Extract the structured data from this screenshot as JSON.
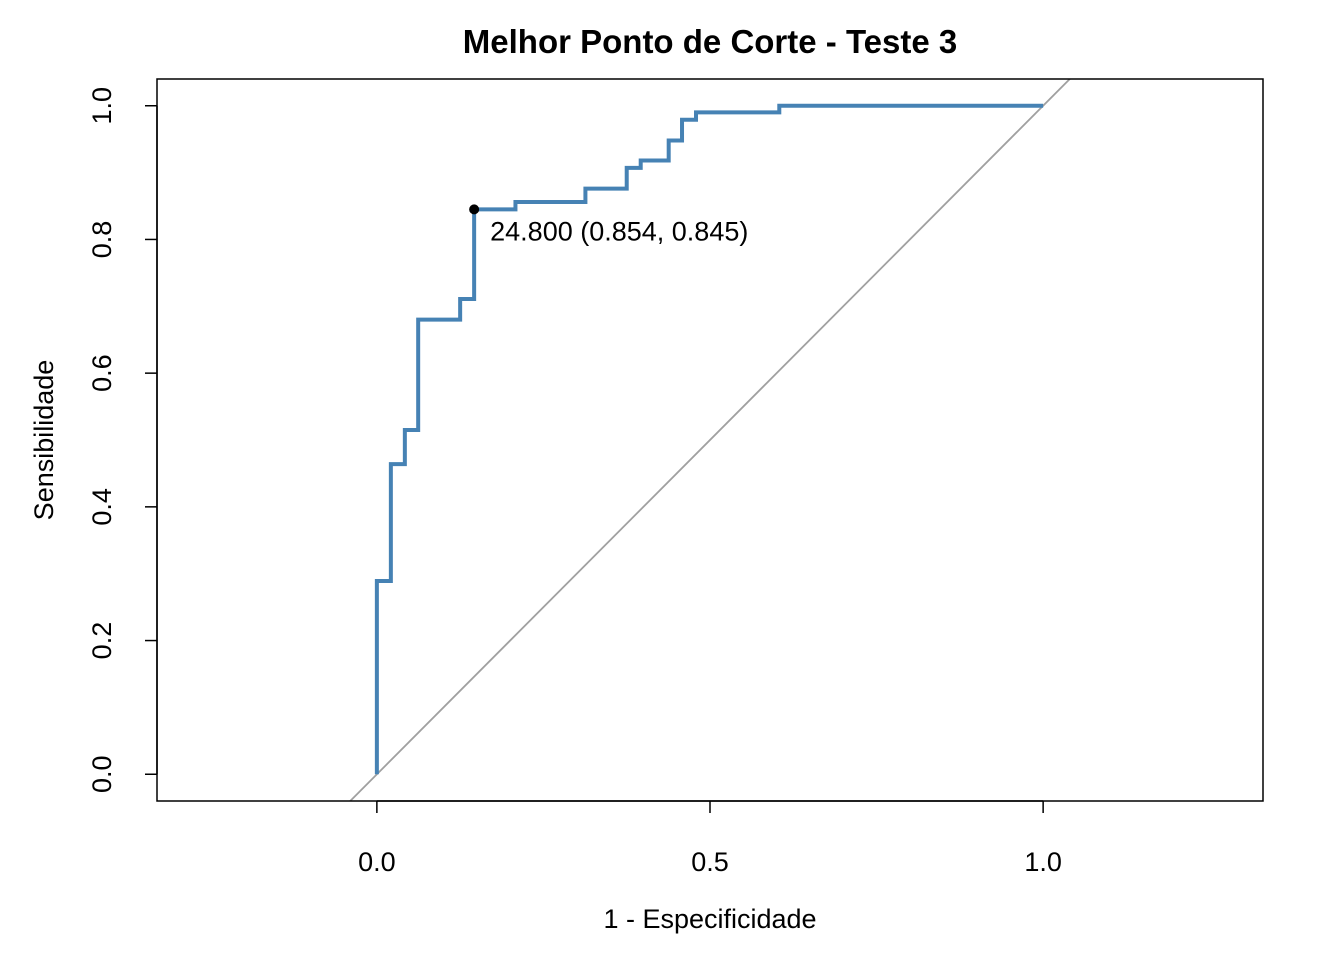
{
  "chart_data": {
    "type": "line",
    "title": "Melhor Ponto de Corte - Teste 3",
    "xlabel": "1 - Especificidade",
    "ylabel": "Sensibilidade",
    "xlim": [
      -0.33,
      1.33
    ],
    "ylim": [
      -0.04,
      1.04
    ],
    "x_ticks": [
      0.0,
      0.5,
      1.0
    ],
    "x_tick_labels": [
      "0.0",
      "0.5",
      "1.0"
    ],
    "y_ticks": [
      0.0,
      0.2,
      0.4,
      0.6,
      0.8,
      1.0
    ],
    "y_tick_labels": [
      "0.0",
      "0.2",
      "0.4",
      "0.6",
      "0.8",
      "1.0"
    ],
    "grid": false,
    "legend": "none",
    "series": [
      {
        "line_style": "step",
        "color": "#4682B4",
        "x": [
          0.0,
          0.0,
          0.021,
          0.021,
          0.042,
          0.042,
          0.062,
          0.062,
          0.125,
          0.125,
          0.146,
          0.146,
          0.208,
          0.208,
          0.313,
          0.313,
          0.375,
          0.375,
          0.396,
          0.396,
          0.438,
          0.438,
          0.458,
          0.458,
          0.479,
          0.479,
          0.604,
          0.604,
          1.0
        ],
        "y": [
          0.0,
          0.289,
          0.289,
          0.464,
          0.464,
          0.515,
          0.515,
          0.68,
          0.68,
          0.711,
          0.711,
          0.845,
          0.845,
          0.856,
          0.856,
          0.876,
          0.876,
          0.907,
          0.907,
          0.918,
          0.918,
          0.948,
          0.948,
          0.979,
          0.979,
          0.99,
          0.99,
          1.0,
          1.0
        ]
      }
    ],
    "reference_line": {
      "kind": "diagonal",
      "intercept": 0,
      "slope": 1,
      "color": "#A0A0A0"
    },
    "best_point": {
      "x": 0.146,
      "y": 0.845,
      "color": "#000000",
      "label": "24.800 (0.854, 0.845)"
    }
  }
}
